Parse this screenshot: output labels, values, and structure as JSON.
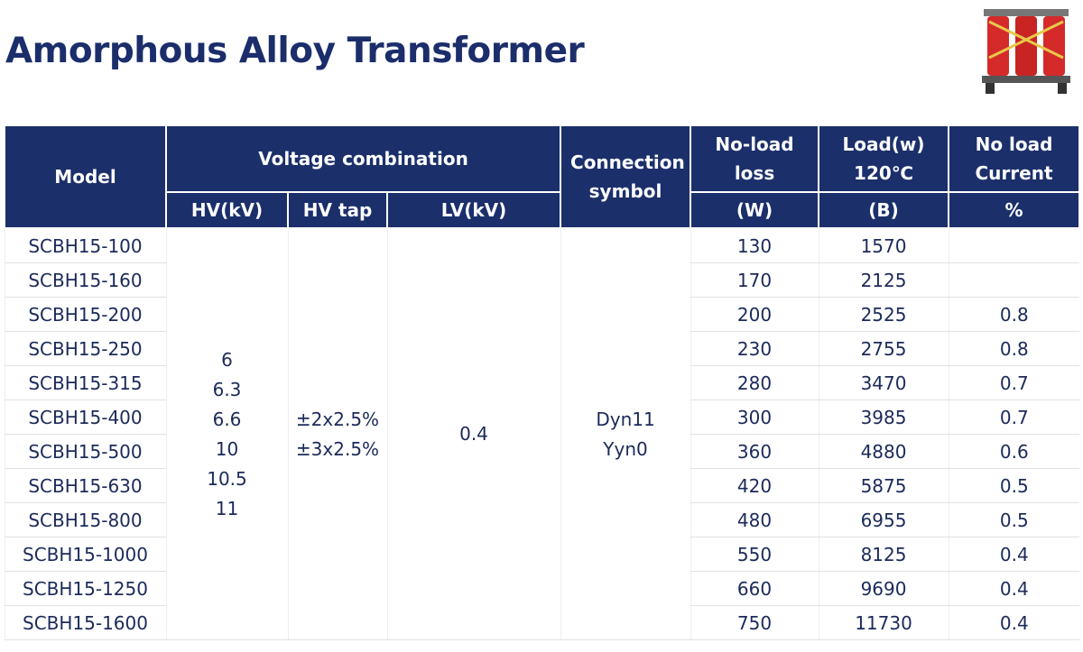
{
  "header": {
    "title": "Amorphous Alloy Transformer"
  },
  "table": {
    "headers": {
      "model": "Model",
      "voltage": "Voltage combination",
      "hv": "HV(kV)",
      "tap": "HV tap",
      "lv": "LV(kV)",
      "connection": "Connection symbol",
      "noload": "No-load loss",
      "noload_unit": "(W)",
      "load": "Load(w) 120℃",
      "load_unit": "(B)",
      "current": "No load Current",
      "current_unit": "%"
    },
    "hv_values": [
      "6",
      "6.3",
      "6.6",
      "10",
      "10.5",
      "11"
    ],
    "tap_values": [
      "±2x2.5%",
      "±3x2.5%"
    ],
    "lv_value": "0.4",
    "connection_values": [
      "Dyn11",
      "Yyn0"
    ],
    "rows": [
      [
        "SCBH15-100",
        "130",
        "1570",
        null
      ],
      [
        "SCBH15-160",
        "170",
        "2125",
        null
      ],
      [
        "SCBH15-200",
        "200",
        "2525",
        "0.8"
      ],
      [
        "SCBH15-250",
        "230",
        "2755",
        "0.8"
      ],
      [
        "SCBH15-315",
        "280",
        "3470",
        "0.7"
      ],
      [
        "SCBH15-400",
        "300",
        "3985",
        "0.7"
      ],
      [
        "SCBH15-500",
        "360",
        "4880",
        "0.6"
      ],
      [
        "SCBH15-630",
        "420",
        "5875",
        "0.5"
      ],
      [
        "SCBH15-800",
        "480",
        "6955",
        "0.5"
      ],
      [
        "SCBH15-1000",
        "550",
        "8125",
        "0.4"
      ],
      [
        "SCBH15-1250",
        "660",
        "9690",
        "0.4"
      ],
      [
        "SCBH15-1600",
        "750",
        "11730",
        "0.4"
      ]
    ]
  }
}
